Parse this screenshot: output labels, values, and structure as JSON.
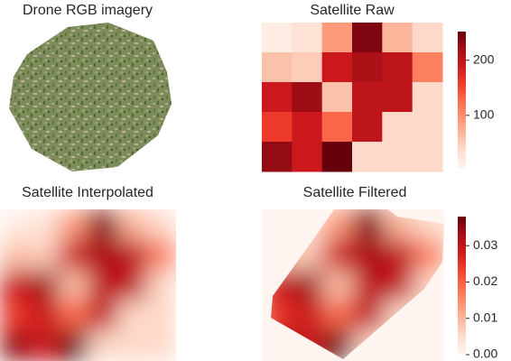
{
  "chart_data": [
    {
      "type": "image",
      "title": "Drone RGB imagery"
    },
    {
      "type": "heatmap",
      "title": "Satellite Raw",
      "values": [
        [
          15,
          30,
          90,
          240,
          70,
          40
        ],
        [
          60,
          50,
          190,
          215,
          200,
          110
        ],
        [
          190,
          225,
          60,
          200,
          200,
          40
        ],
        [
          160,
          190,
          130,
          200,
          40,
          40
        ],
        [
          230,
          190,
          252,
          40,
          40,
          40
        ]
      ],
      "zlim": [
        3,
        252
      ],
      "zticks": [
        100,
        200
      ],
      "colors": [
        "#fff5f0",
        "#fee0d2",
        "#fcbba1",
        "#fc9272",
        "#fb6a4a",
        "#ef3b2c",
        "#cb181d",
        "#a50f15",
        "#67000d"
      ]
    },
    {
      "type": "interpolated",
      "title": "Satellite Interpolated"
    },
    {
      "type": "filtered",
      "title": "Satellite Filtered",
      "zlim": [
        0,
        0.038
      ],
      "zticks": [
        {
          "value": 0,
          "label": "0.00"
        },
        0.01,
        0.02,
        0.03
      ]
    }
  ]
}
